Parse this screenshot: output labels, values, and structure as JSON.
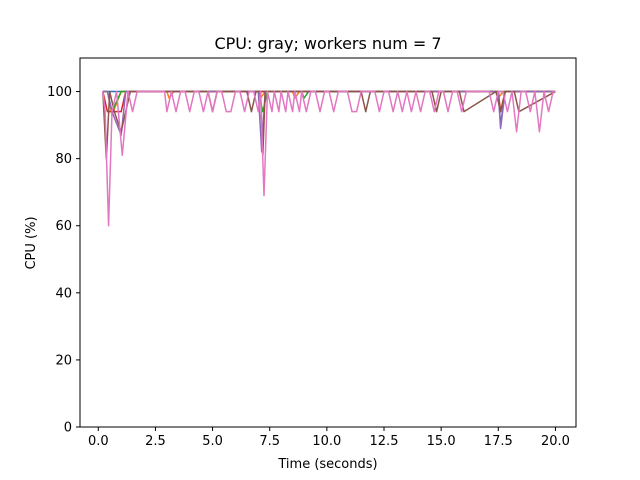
{
  "chart_data": {
    "type": "line",
    "title": "CPU: gray; workers num = 7",
    "xlabel": "Time (seconds)",
    "ylabel": "CPU (%)",
    "xlim": [
      -0.8,
      20.9
    ],
    "ylim": [
      0,
      110
    ],
    "xticks": [
      "0.0",
      "2.5",
      "5.0",
      "7.5",
      "10.0",
      "12.5",
      "15.0",
      "17.5",
      "20.0"
    ],
    "yticks": [
      "0",
      "20",
      "40",
      "60",
      "80",
      "100"
    ],
    "grid": false,
    "legend": "none",
    "series": [
      {
        "color": "#1f77b4",
        "x": [
          0.2,
          0.4,
          0.5,
          0.7,
          1.0,
          1.2,
          1.5,
          17.5,
          17.6,
          17.8,
          20.0
        ],
        "y": [
          100,
          100,
          100,
          100,
          100,
          100,
          100,
          100,
          90,
          100,
          100
        ]
      },
      {
        "color": "#ff7f0e",
        "x": [
          0.2,
          0.4,
          0.6,
          1.0,
          1.3,
          1.7,
          3.0,
          3.1,
          3.3,
          7.0,
          7.1,
          7.3,
          8.5,
          8.6,
          8.8,
          17.4,
          17.5,
          17.7,
          20.0
        ],
        "y": [
          100,
          100,
          93,
          100,
          100,
          100,
          100,
          98,
          100,
          100,
          98,
          100,
          100,
          98,
          100,
          100,
          98,
          100,
          100
        ]
      },
      {
        "color": "#2ca02c",
        "x": [
          0.2,
          0.4,
          0.6,
          1.0,
          1.3,
          1.7,
          7.0,
          7.2,
          7.4,
          8.9,
          9.0,
          9.2,
          20.0
        ],
        "y": [
          100,
          100,
          94,
          100,
          100,
          100,
          100,
          94,
          100,
          100,
          98,
          100,
          100
        ]
      },
      {
        "color": "#d62728",
        "x": [
          0.2,
          0.4,
          0.7,
          1.0,
          1.2,
          1.5,
          2.0,
          17.5,
          17.6,
          17.8,
          20.0
        ],
        "y": [
          100,
          94,
          94,
          94,
          100,
          100,
          100,
          100,
          94,
          100,
          100
        ]
      },
      {
        "color": "#9467bd",
        "x": [
          0.2,
          0.4,
          0.6,
          1.0,
          1.2,
          1.5,
          7.0,
          7.15,
          7.3,
          17.5,
          17.6,
          17.8,
          20.0
        ],
        "y": [
          100,
          100,
          94,
          87,
          100,
          100,
          100,
          82,
          100,
          100,
          89,
          100,
          100
        ]
      },
      {
        "color": "#8c564b",
        "x": [
          0.2,
          0.35,
          0.5,
          0.7,
          1.0,
          1.2,
          1.4,
          4.8,
          5.0,
          5.2,
          6.5,
          6.7,
          6.9,
          7.1,
          7.2,
          7.3,
          7.5,
          11.5,
          11.7,
          11.9,
          14.6,
          14.8,
          15.0,
          15.8,
          16.0,
          17.4,
          17.6,
          17.8,
          18.2,
          18.4,
          20.0
        ],
        "y": [
          100,
          80,
          100,
          94,
          88,
          94,
          100,
          100,
          94,
          100,
          100,
          94,
          100,
          100,
          81,
          100,
          100,
          100,
          94,
          100,
          100,
          94,
          100,
          100,
          94,
          100,
          94,
          100,
          100,
          94,
          100
        ]
      },
      {
        "color": "#e377c2",
        "x": [
          0.2,
          0.3,
          0.45,
          0.6,
          0.8,
          1.05,
          1.3,
          1.5,
          1.7,
          2.0,
          2.5,
          2.9,
          3.0,
          3.2,
          3.4,
          3.6,
          3.8,
          4.0,
          4.2,
          4.4,
          4.6,
          4.8,
          5.0,
          5.2,
          5.4,
          5.6,
          5.8,
          6.0,
          6.2,
          6.4,
          6.6,
          6.8,
          7.0,
          7.1,
          7.25,
          7.4,
          7.6,
          7.7,
          7.9,
          8.0,
          8.2,
          8.3,
          8.5,
          8.6,
          8.8,
          8.9,
          9.1,
          9.3,
          9.5,
          9.7,
          9.9,
          10.1,
          10.3,
          10.5,
          10.7,
          10.9,
          11.1,
          11.3,
          11.5,
          11.7,
          11.9,
          12.1,
          12.3,
          12.5,
          12.7,
          12.9,
          13.1,
          13.3,
          13.5,
          13.7,
          13.9,
          14.1,
          14.3,
          14.5,
          14.7,
          14.9,
          15.1,
          15.3,
          15.5,
          15.7,
          15.9,
          16.1,
          16.3,
          16.5,
          16.7,
          16.9,
          17.1,
          17.3,
          17.5,
          17.7,
          17.9,
          18.1,
          18.3,
          18.5,
          18.7,
          18.9,
          19.1,
          19.3,
          19.5,
          19.7,
          19.9,
          20.0
        ],
        "y": [
          100,
          94,
          60,
          94,
          100,
          81,
          100,
          94,
          100,
          100,
          100,
          100,
          94,
          100,
          94,
          100,
          100,
          94,
          100,
          100,
          94,
          100,
          94,
          100,
          100,
          94,
          94,
          100,
          100,
          94,
          100,
          100,
          94,
          100,
          69,
          100,
          94,
          100,
          94,
          100,
          94,
          100,
          94,
          100,
          94,
          100,
          94,
          100,
          100,
          94,
          100,
          100,
          94,
          100,
          100,
          100,
          94,
          94,
          100,
          100,
          100,
          100,
          94,
          100,
          100,
          94,
          100,
          94,
          100,
          94,
          100,
          94,
          100,
          100,
          94,
          100,
          100,
          94,
          100,
          100,
          94,
          100,
          100,
          100,
          100,
          100,
          100,
          94,
          100,
          100,
          94,
          100,
          88,
          100,
          100,
          94,
          100,
          88,
          100,
          94,
          100,
          100
        ]
      }
    ]
  }
}
